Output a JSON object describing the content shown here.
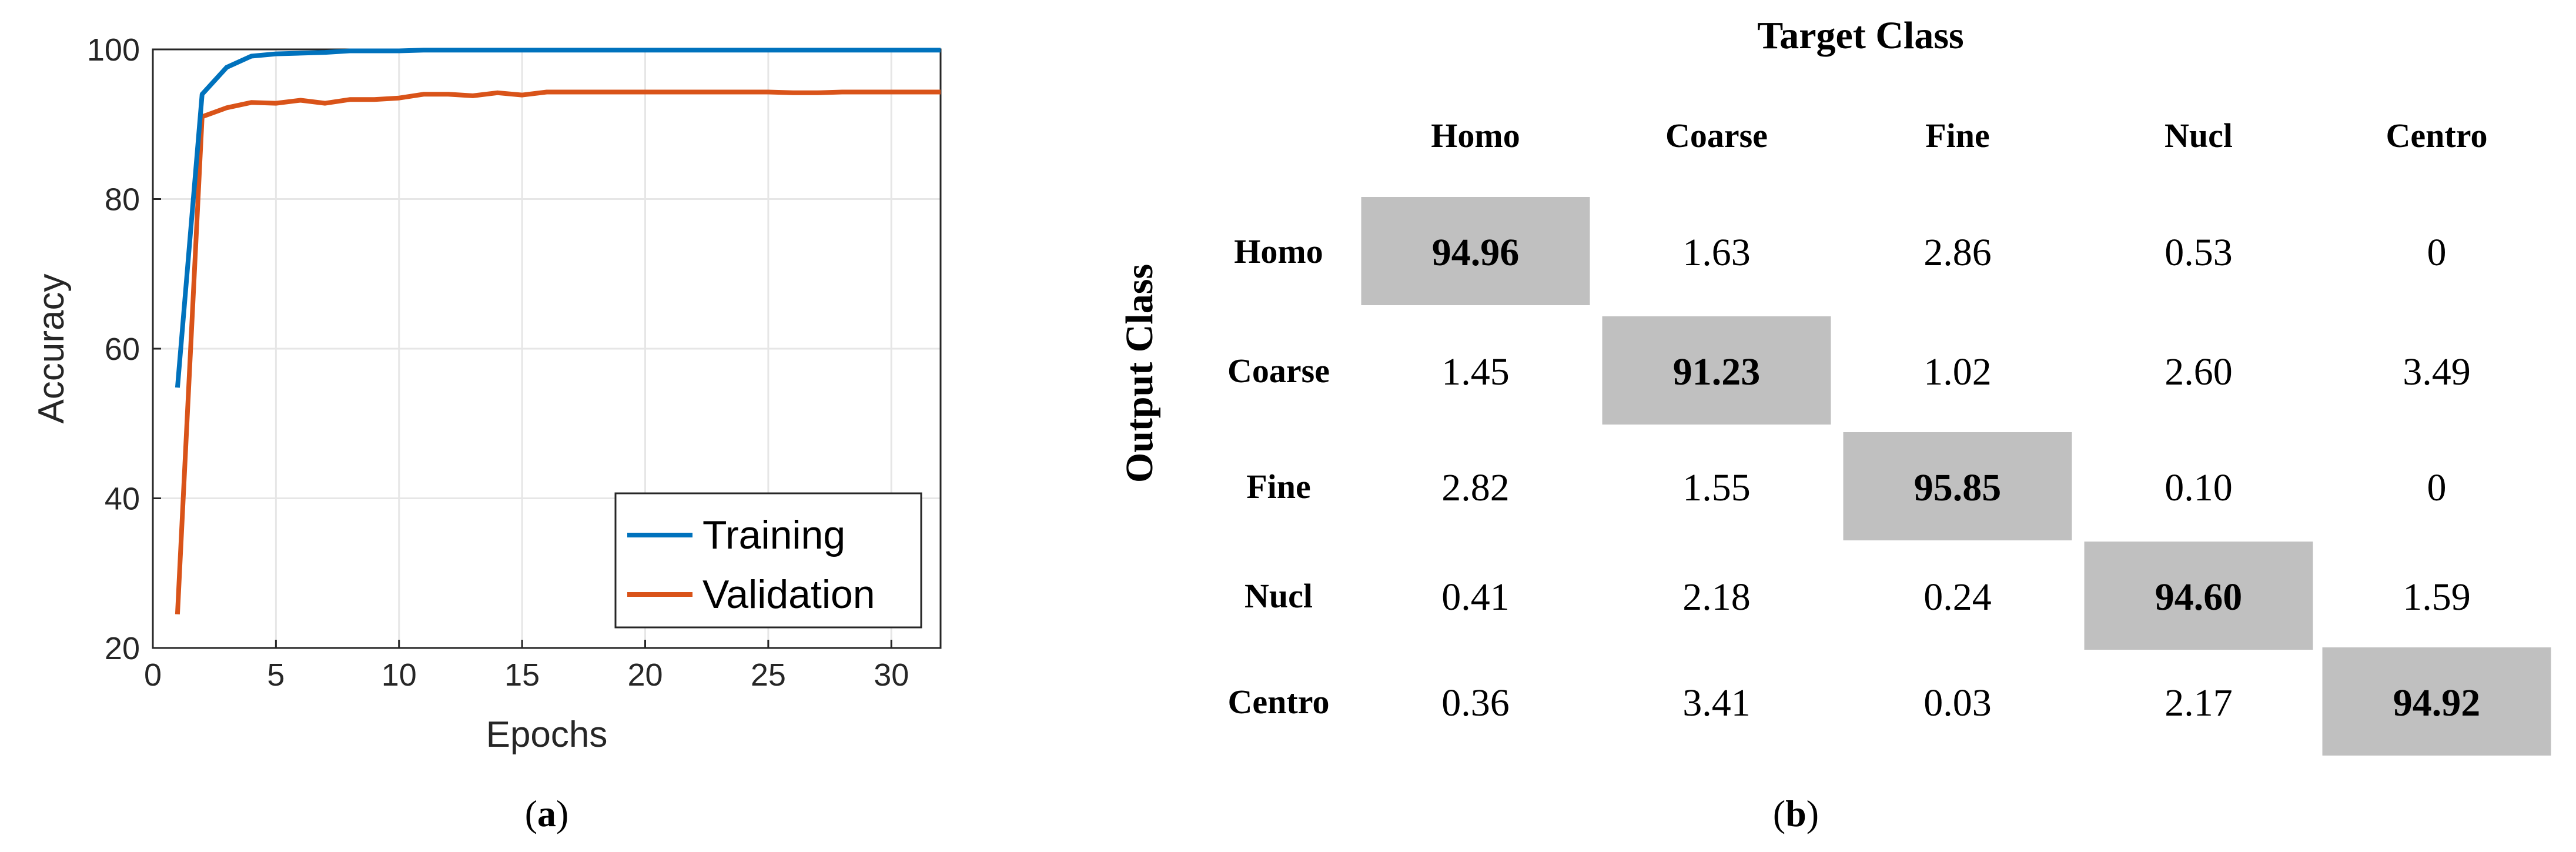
{
  "colors": {
    "training": "#0072BD",
    "validation": "#D95319",
    "grid": "#e6e6e6",
    "axis": "#262626",
    "diag_fill": "#c0c0c0",
    "diag_border": "#ffffff"
  },
  "panel_a_label": "a",
  "panel_b_label": "b",
  "chart_data": [
    {
      "type": "line",
      "xlabel": "Epochs",
      "ylabel": "Accuracy",
      "xlim": [
        0,
        32
      ],
      "ylim": [
        20,
        100
      ],
      "xticks": [
        0,
        5,
        10,
        15,
        20,
        25,
        30
      ],
      "yticks": [
        20,
        40,
        60,
        80,
        100
      ],
      "grid": true,
      "legend_position": "bottom-right",
      "series": [
        {
          "name": "Training",
          "color": "#0072BD",
          "x": [
            1,
            2,
            3,
            4,
            5,
            6,
            7,
            8,
            9,
            10,
            11,
            12,
            13,
            14,
            15,
            16,
            17,
            18,
            19,
            20,
            21,
            22,
            23,
            24,
            25,
            26,
            27,
            28,
            29,
            30,
            31,
            32
          ],
          "y": [
            54.8,
            94.0,
            97.6,
            99.1,
            99.4,
            99.5,
            99.6,
            99.8,
            99.8,
            99.8,
            99.9,
            99.9,
            99.9,
            99.9,
            99.9,
            99.9,
            99.9,
            99.9,
            99.9,
            99.9,
            99.9,
            99.9,
            99.9,
            99.9,
            99.9,
            99.9,
            99.9,
            99.9,
            99.9,
            99.9,
            99.9,
            99.9
          ]
        },
        {
          "name": "Validation",
          "color": "#D95319",
          "x": [
            1,
            2,
            3,
            4,
            5,
            6,
            7,
            8,
            9,
            10,
            11,
            12,
            13,
            14,
            15,
            16,
            17,
            18,
            19,
            20,
            21,
            22,
            23,
            24,
            25,
            26,
            27,
            28,
            29,
            30,
            31,
            32
          ],
          "y": [
            24.5,
            91.0,
            92.2,
            92.9,
            92.8,
            93.2,
            92.8,
            93.3,
            93.3,
            93.5,
            94.0,
            94.0,
            93.8,
            94.2,
            93.9,
            94.3,
            94.3,
            94.3,
            94.3,
            94.3,
            94.3,
            94.3,
            94.3,
            94.3,
            94.3,
            94.2,
            94.2,
            94.3,
            94.3,
            94.3,
            94.3,
            94.3
          ]
        }
      ]
    },
    {
      "type": "heatmap",
      "title": "Target Class",
      "ylabel": "Output Class",
      "columns": [
        "Homo",
        "Coarse",
        "Fine",
        "Nucl",
        "Centro"
      ],
      "rows": [
        "Homo",
        "Coarse",
        "Fine",
        "Nucl",
        "Centro"
      ],
      "values": [
        [
          "94.96",
          "1.63",
          "2.86",
          "0.53",
          "0"
        ],
        [
          "1.45",
          "91.23",
          "1.02",
          "2.60",
          "3.49"
        ],
        [
          "2.82",
          "1.55",
          "95.85",
          "0.10",
          "0"
        ],
        [
          "0.41",
          "2.18",
          "0.24",
          "94.60",
          "1.59"
        ],
        [
          "0.36",
          "3.41",
          "0.03",
          "2.17",
          "94.92"
        ]
      ],
      "highlight": "diagonal"
    }
  ]
}
